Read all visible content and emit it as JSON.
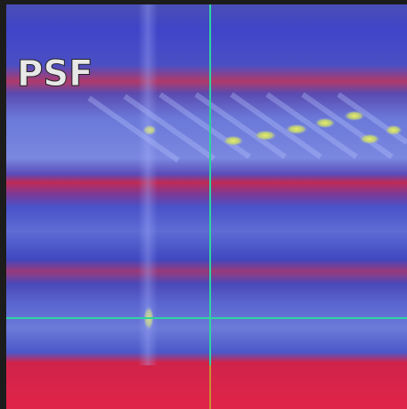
{
  "label": "PSF"
}
